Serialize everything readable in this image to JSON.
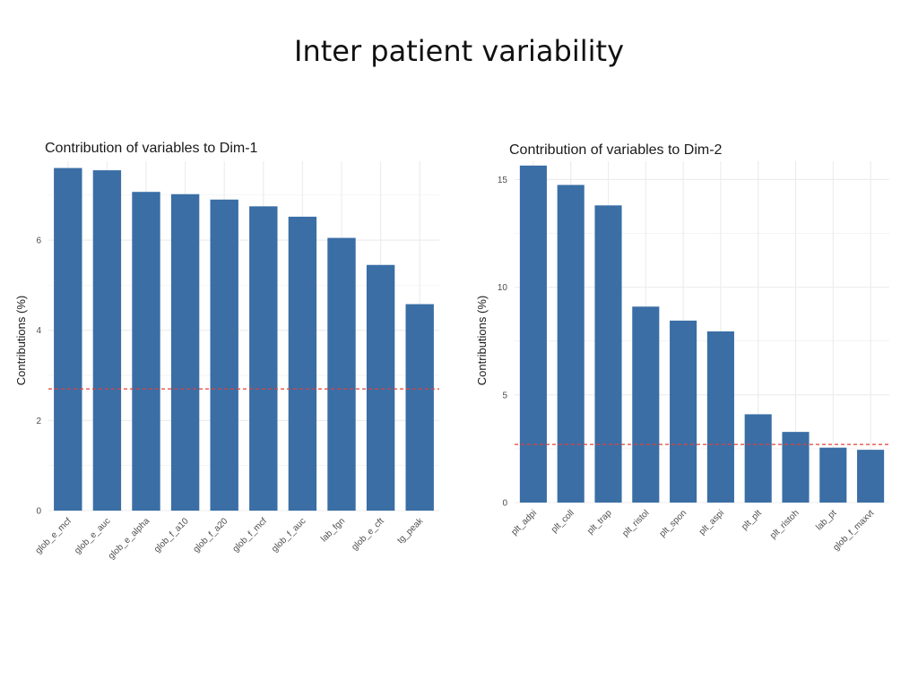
{
  "slide": {
    "title": "Inter patient variability"
  },
  "chart_data": [
    {
      "type": "bar",
      "title": "Contribution of variables to Dim-1",
      "xlabel": "",
      "ylabel": "Contributions (%)",
      "categories": [
        "glob_e_mcf",
        "glob_e_auc",
        "glob_e_alpha",
        "glob_f_a10",
        "glob_f_a20",
        "glob_f_mcf",
        "glob_f_auc",
        "lab_fgn",
        "glob_e_cft",
        "tg_peak"
      ],
      "values": [
        7.6,
        7.55,
        7.07,
        7.02,
        6.9,
        6.75,
        6.52,
        6.05,
        5.45,
        4.58
      ],
      "reference_line": 2.7,
      "ylim": [
        0,
        7.75
      ],
      "yticks": [
        0,
        2,
        4,
        6
      ],
      "grid": true,
      "colors": {
        "bar": "#3a6ea5",
        "reference_line": "#e0403a",
        "grid": "#ececec"
      }
    },
    {
      "type": "bar",
      "title": "Contribution of variables to Dim-2",
      "xlabel": "",
      "ylabel": "Contributions (%)",
      "categories": [
        "plt_adpi",
        "plt_coll",
        "plt_trap",
        "plt_ristol",
        "plt_spon",
        "plt_aspi",
        "plt_plt",
        "plt_ristoh",
        "lab_pt",
        "glob_f_maxvt"
      ],
      "values": [
        15.65,
        14.75,
        13.8,
        9.1,
        8.45,
        7.95,
        4.1,
        3.28,
        2.55,
        2.45
      ],
      "reference_line": 2.7,
      "ylim": [
        0,
        15.85
      ],
      "yticks": [
        0,
        5,
        10,
        15
      ],
      "grid": true,
      "colors": {
        "bar": "#3a6ea5",
        "reference_line": "#e0403a",
        "grid": "#ececec"
      }
    }
  ]
}
